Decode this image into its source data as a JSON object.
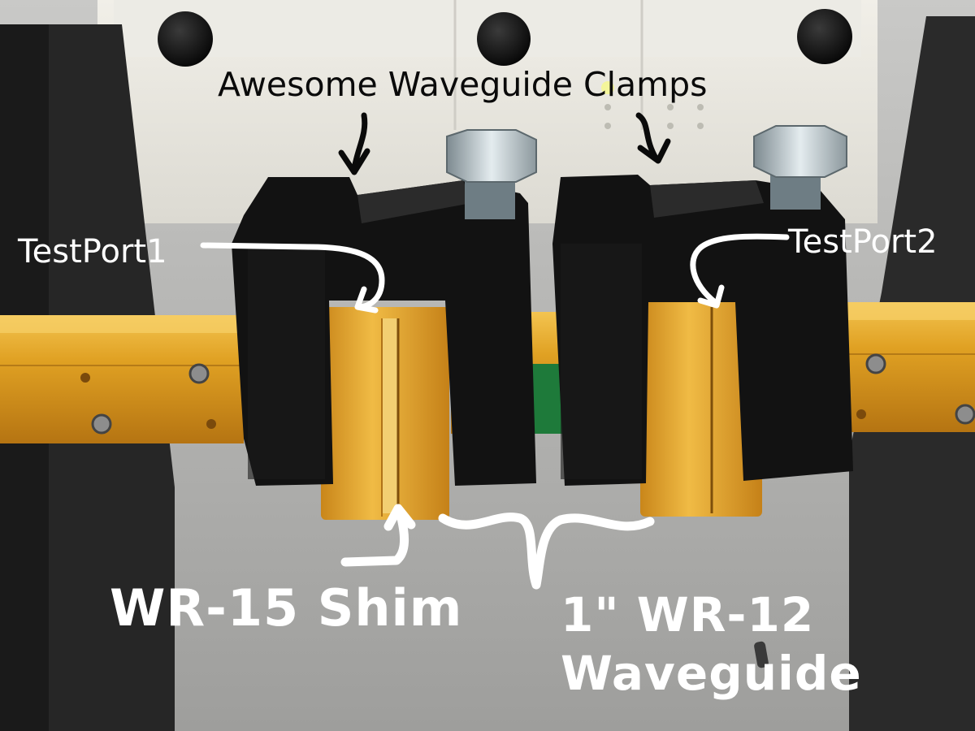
{
  "annotations": {
    "title": "Awesome Waveguide Clamps",
    "test_port_1": "TestPort1",
    "test_port_2": "TestPort2",
    "shim": "WR-15 Shim",
    "waveguide_line1": "1\" WR-12",
    "waveguide_line2": "Waveguide"
  },
  "colors": {
    "background_panel": "#e9e7e0",
    "bench_gray": "#b7b7b5",
    "clamp_black": "#111111",
    "waveguide_gold": "#d99a1e",
    "flange_gold": "#e0a22a",
    "annotation_white": "#ffffff",
    "annotation_black": "#0a0a0a"
  }
}
